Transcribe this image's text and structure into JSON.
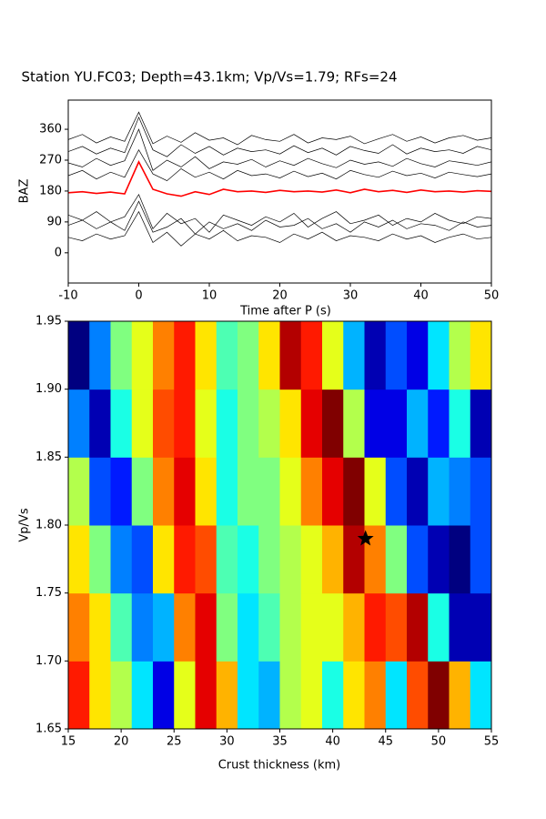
{
  "chart_data": [
    {
      "type": "line",
      "title": "Station YU.FC03; Depth=43.1km; Vp/Vs=1.79; RFs=24",
      "xlabel": "Time after P (s)",
      "ylabel": "BAZ",
      "xlim": [
        -10,
        50
      ],
      "ylim": [
        -88,
        445
      ],
      "xticks": [
        -10,
        0,
        10,
        20,
        30,
        40,
        50
      ],
      "yticks": [
        0,
        90,
        180,
        270,
        360
      ],
      "x": [
        -10,
        -8,
        -6,
        -4,
        -2,
        0,
        2,
        4,
        6,
        8,
        10,
        12,
        14,
        16,
        18,
        20,
        22,
        24,
        26,
        28,
        30,
        32,
        34,
        36,
        38,
        40,
        42,
        44,
        46,
        48,
        50
      ],
      "series": [
        {
          "color": "#000000",
          "values": [
            295,
            310,
            288,
            305,
            292,
            395,
            300,
            280,
            315,
            290,
            310,
            285,
            305,
            295,
            300,
            288,
            312,
            292,
            305,
            285,
            310,
            298,
            290,
            315,
            288,
            305,
            295,
            300,
            290,
            310,
            300
          ]
        },
        {
          "color": "#000000",
          "values": [
            330,
            345,
            320,
            338,
            325,
            410,
            318,
            340,
            322,
            350,
            328,
            335,
            315,
            342,
            330,
            325,
            345,
            320,
            335,
            330,
            340,
            318,
            332,
            345,
            325,
            338,
            320,
            335,
            342,
            328,
            335
          ]
        },
        {
          "color": "#000000",
          "values": [
            262,
            250,
            275,
            255,
            268,
            360,
            240,
            270,
            250,
            280,
            245,
            265,
            258,
            272,
            250,
            268,
            255,
            275,
            260,
            248,
            270,
            258,
            265,
            252,
            275,
            260,
            250,
            268,
            262,
            255,
            265
          ]
        },
        {
          "color": "#000000",
          "values": [
            225,
            240,
            215,
            235,
            220,
            300,
            230,
            210,
            245,
            220,
            235,
            215,
            240,
            225,
            230,
            218,
            238,
            222,
            232,
            215,
            240,
            228,
            220,
            238,
            225,
            232,
            218,
            235,
            228,
            222,
            230
          ]
        },
        {
          "color": "#000000",
          "values": [
            110,
            95,
            120,
            90,
            105,
            170,
            70,
            115,
            85,
            100,
            60,
            110,
            95,
            80,
            105,
            90,
            115,
            75,
            100,
            120,
            85,
            95,
            110,
            80,
            100,
            90,
            115,
            95,
            85,
            105,
            100
          ]
        },
        {
          "color": "#000000",
          "values": [
            80,
            95,
            70,
            90,
            65,
            150,
            60,
            75,
            100,
            55,
            90,
            70,
            85,
            65,
            95,
            75,
            80,
            100,
            70,
            85,
            60,
            90,
            75,
            95,
            70,
            85,
            80,
            65,
            90,
            75,
            80
          ]
        },
        {
          "color": "#000000",
          "values": [
            45,
            35,
            55,
            40,
            50,
            120,
            30,
            60,
            20,
            55,
            40,
            65,
            35,
            50,
            45,
            30,
            55,
            40,
            60,
            35,
            50,
            45,
            35,
            55,
            40,
            50,
            30,
            45,
            55,
            40,
            45
          ]
        },
        {
          "color": "#ff0000",
          "values": [
            175,
            178,
            173,
            177,
            172,
            265,
            185,
            172,
            165,
            178,
            170,
            185,
            178,
            180,
            176,
            182,
            178,
            180,
            177,
            183,
            175,
            185,
            178,
            182,
            176,
            183,
            178,
            180,
            177,
            181,
            179
          ]
        }
      ]
    },
    {
      "type": "heatmap",
      "xlabel": "Crust thickness (km)",
      "ylabel": "Vp/Vs",
      "colormap": "jet",
      "zlim": [
        -1,
        1
      ],
      "xlim": [
        15,
        55
      ],
      "ylim": [
        1.65,
        1.95
      ],
      "xticks": [
        15,
        20,
        25,
        30,
        35,
        40,
        45,
        50,
        55
      ],
      "yticks": [
        1.65,
        {
          "value": 1.7,
          "label": "1.70"
        },
        1.75,
        {
          "value": 1.8,
          "label": "1.80"
        },
        1.85,
        {
          "value": 1.9,
          "label": "1.90"
        },
        1.95
      ],
      "xbins": [
        15,
        17,
        19,
        21,
        23,
        25,
        27,
        29,
        31,
        33,
        35,
        37,
        39,
        41,
        43,
        45,
        47,
        49,
        51,
        53,
        55
      ],
      "ybins": [
        1.65,
        1.7,
        1.75,
        1.8,
        1.85,
        1.9,
        1.95
      ],
      "z": [
        [
          0.7,
          0.3,
          0.1,
          -0.3,
          -0.8,
          0.2,
          0.8,
          0.4,
          -0.3,
          -0.4,
          0.1,
          0.2,
          -0.2,
          0.3,
          0.5,
          -0.3,
          0.6,
          1.0,
          0.4,
          -0.3
        ],
        [
          0.5,
          0.3,
          -0.1,
          -0.5,
          -0.4,
          0.5,
          0.8,
          0,
          -0.3,
          -0.1,
          0.1,
          0.2,
          0.2,
          0.4,
          0.7,
          0.6,
          0.9,
          -0.2,
          -0.9,
          -0.9
        ],
        [
          0.3,
          0,
          -0.5,
          -0.6,
          0.3,
          0.7,
          0.6,
          -0.1,
          -0.2,
          0,
          0.1,
          0.2,
          0.4,
          0.9,
          0.5,
          0,
          -0.6,
          -0.9,
          -1.0,
          -0.6
        ],
        [
          0.1,
          -0.6,
          -0.7,
          0,
          0.5,
          0.8,
          0.3,
          -0.2,
          0,
          0,
          0.2,
          0.5,
          0.8,
          1.0,
          0.2,
          -0.6,
          -0.9,
          -0.4,
          -0.5,
          -0.6
        ],
        [
          -0.5,
          -0.9,
          -0.2,
          0.2,
          0.6,
          0.7,
          0.2,
          -0.2,
          0,
          0.1,
          0.3,
          0.8,
          1.0,
          0.1,
          -0.8,
          -0.8,
          -0.4,
          -0.7,
          -0.2,
          -0.9
        ],
        [
          -1.0,
          -0.5,
          0,
          0.2,
          0.5,
          0.7,
          0.3,
          -0.1,
          0,
          0.3,
          0.9,
          0.7,
          0.2,
          -0.4,
          -0.9,
          -0.6,
          -0.8,
          -0.3,
          0.1,
          0.3
        ]
      ],
      "star": {
        "x": 43.1,
        "y": 1.79
      }
    }
  ]
}
